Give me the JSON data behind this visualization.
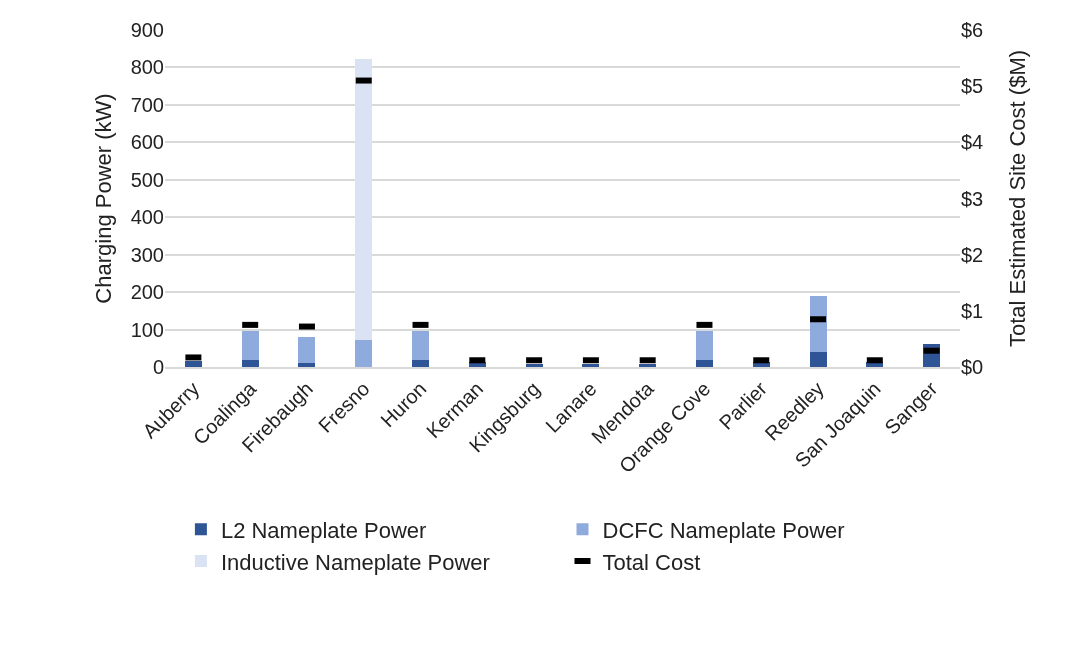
{
  "chart_data": {
    "type": "bar",
    "stacked": true,
    "categories": [
      "Auberry",
      "Coalinga",
      "Firebaugh",
      "Fresno",
      "Huron",
      "Kerman",
      "Kingsburg",
      "Lanare",
      "Mendota",
      "Orange Cove",
      "Parlier",
      "Reedley",
      "San Joaquin",
      "Sanger"
    ],
    "series": [
      {
        "name": "L2 Nameplate Power",
        "color": "#2f5597",
        "values": [
          16,
          20,
          10,
          0,
          20,
          14,
          7,
          7,
          7,
          20,
          14,
          40,
          14,
          62
        ]
      },
      {
        "name": "DCFC Nameplate Power",
        "color": "#8faadc",
        "values": [
          0,
          76,
          71,
          73,
          76,
          0,
          0,
          0,
          0,
          76,
          0,
          150,
          0,
          0
        ]
      },
      {
        "name": "Inductive Nameplate Power",
        "color": "#dae3f3",
        "values": [
          0,
          0,
          0,
          750,
          0,
          0,
          0,
          0,
          0,
          0,
          0,
          0,
          0,
          0
        ]
      },
      {
        "name": "Total Cost",
        "type": "scatter",
        "axis": "y2",
        "color": "#000000",
        "values": [
          0.17,
          0.75,
          0.72,
          5.1,
          0.75,
          0.12,
          0.12,
          0.12,
          0.12,
          0.75,
          0.12,
          0.85,
          0.12,
          0.29
        ]
      }
    ],
    "ylabel": "Charging Power (kW)",
    "y2label": "Total Estimated Site Cost ($M)",
    "ylim": [
      0,
      900
    ],
    "yticks": [
      0,
      100,
      200,
      300,
      400,
      500,
      600,
      700,
      800,
      900
    ],
    "y2lim": [
      0,
      6
    ],
    "y2ticks": [
      {
        "value": 0,
        "label": "$0"
      },
      {
        "value": 1,
        "label": "$1"
      },
      {
        "value": 2,
        "label": "$2"
      },
      {
        "value": 3,
        "label": "$3"
      },
      {
        "value": 4,
        "label": "$4"
      },
      {
        "value": 5,
        "label": "$5"
      },
      {
        "value": 6,
        "label": "$6"
      }
    ],
    "grid": "y",
    "legend": "bottom"
  }
}
